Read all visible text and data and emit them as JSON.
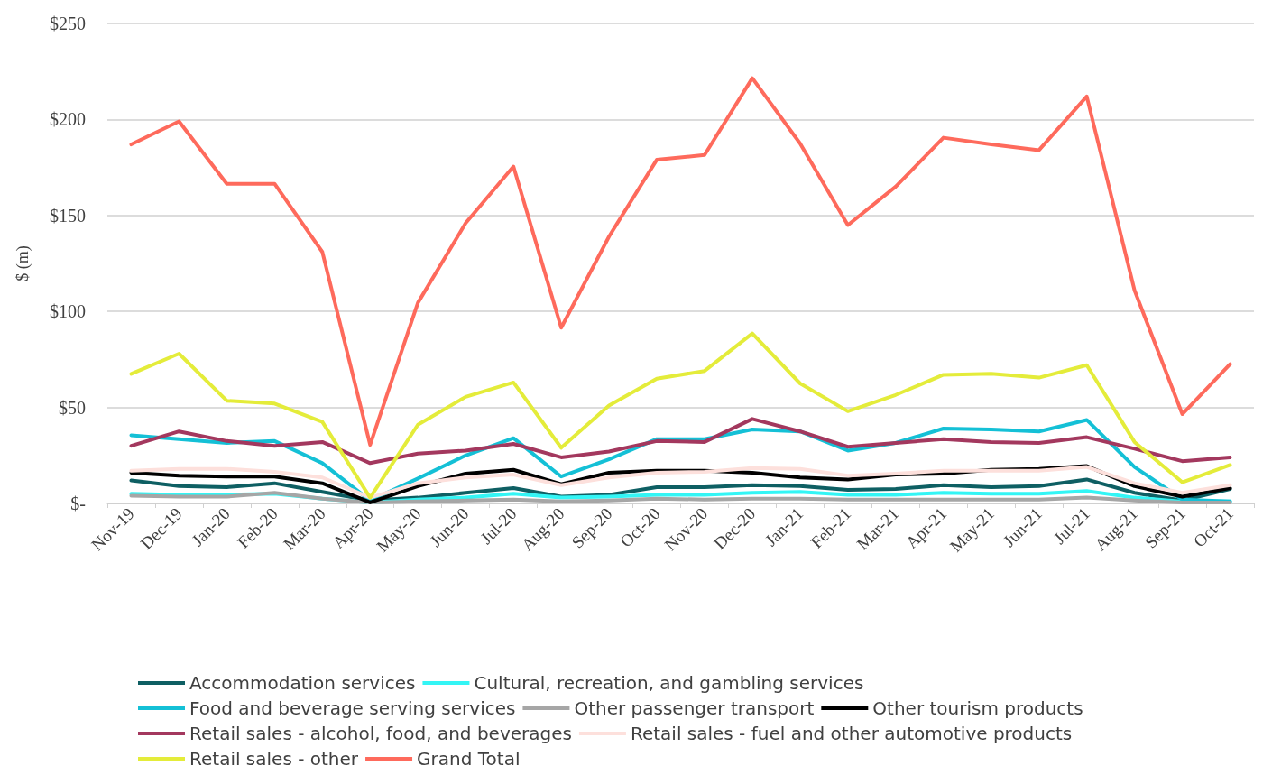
{
  "chart_data": {
    "type": "line",
    "ylabel": "$ (m)",
    "categories": [
      "Nov-19",
      "Dec-19",
      "Jan-20",
      "Feb-20",
      "Mar-20",
      "Apr-20",
      "May-20",
      "Jun-20",
      "Jul-20",
      "Aug-20",
      "Sep-20",
      "Oct-20",
      "Nov-20",
      "Dec-20",
      "Jan-21",
      "Feb-21",
      "Mar-21",
      "Apr-21",
      "May-21",
      "Jun-21",
      "Jul-21",
      "Aug-21",
      "Sep-21",
      "Oct-21"
    ],
    "ylim": [
      0,
      250
    ],
    "yticks": [
      {
        "value": 0,
        "label": "$-"
      },
      {
        "value": 50,
        "label": "$50"
      },
      {
        "value": 100,
        "label": "$100"
      },
      {
        "value": 150,
        "label": "$150"
      },
      {
        "value": 200,
        "label": "$200"
      },
      {
        "value": 250,
        "label": "$250"
      }
    ],
    "grid": "y",
    "legend": "bottom",
    "marker": "none",
    "line_style": "solid",
    "series": [
      {
        "name": "Accommodation services",
        "color": "#0e5f63",
        "values": [
          12,
          9,
          8.5,
          10.5,
          6,
          1.5,
          3,
          5.5,
          8,
          3.5,
          4.5,
          8.5,
          8.5,
          9.5,
          9,
          7,
          7.5,
          9.5,
          8.5,
          9,
          12.5,
          5.5,
          1.5,
          7.5
        ]
      },
      {
        "name": "Cultural, recreation, and gambling services",
        "color": "#33f5f5",
        "values": [
          5,
          4.5,
          4.5,
          5,
          2.5,
          0.5,
          2,
          3,
          5,
          3,
          3.5,
          4.5,
          4.5,
          5.5,
          6,
          4.5,
          4.5,
          5.5,
          5,
          5,
          6.5,
          3,
          1,
          1
        ]
      },
      {
        "name": "Food and beverage serving services",
        "color": "#14c0d6",
        "values": [
          35.5,
          33.5,
          31.5,
          32.5,
          21,
          1.5,
          13,
          25,
          34,
          14,
          23,
          33.5,
          33.5,
          38.5,
          37.5,
          27.5,
          31.5,
          39,
          38.5,
          37.5,
          43.5,
          19,
          2,
          1
        ]
      },
      {
        "name": "Other passenger transport",
        "color": "#a6a6a6",
        "values": [
          4,
          3.5,
          3.5,
          5.5,
          2.5,
          0.5,
          1,
          1.5,
          2,
          1,
          1.5,
          2.5,
          2,
          2.5,
          2.5,
          2,
          2,
          2,
          2,
          2,
          3,
          1.5,
          0.5,
          0.5
        ]
      },
      {
        "name": "Other tourism products",
        "color": "#000000",
        "values": [
          16,
          14.5,
          14,
          14,
          10.5,
          0.5,
          9,
          15.5,
          17.5,
          10,
          16,
          17,
          17,
          16,
          13.5,
          12.5,
          15,
          15.5,
          17.5,
          18,
          19.5,
          9,
          3.5,
          8
        ]
      },
      {
        "name": "Retail sales - alcohol, food, and beverages",
        "color": "#a3385e",
        "values": [
          30,
          37.5,
          32.5,
          30,
          32,
          21,
          26,
          27.5,
          31,
          24,
          27,
          32.5,
          32,
          44,
          37.5,
          29.5,
          31.5,
          33.5,
          32,
          31.5,
          34.5,
          28.5,
          22,
          24
        ]
      },
      {
        "name": "Retail sales - fuel and other automotive products",
        "color": "#fde0dc",
        "values": [
          17,
          18,
          18,
          16.5,
          13.5,
          3,
          10.5,
          13.5,
          15,
          9.5,
          13.5,
          16,
          16.5,
          18.5,
          18,
          14.5,
          15.5,
          17,
          17,
          17,
          19,
          10.5,
          5.5,
          9.5
        ]
      },
      {
        "name": "Retail sales - other",
        "color": "#e4ec3a",
        "values": [
          67.5,
          78,
          53.5,
          52,
          42.5,
          3,
          41,
          55.5,
          63,
          29,
          51,
          65,
          69,
          88.5,
          62.5,
          48,
          56.5,
          67,
          67.5,
          65.5,
          72,
          32,
          11,
          20
        ]
      },
      {
        "name": "Grand Total",
        "color": "#fe6a5c",
        "values": [
          187,
          199,
          166.5,
          166.5,
          131,
          30.5,
          104.5,
          146,
          175.5,
          91.5,
          139,
          179,
          181.5,
          221.5,
          187.5,
          145,
          165,
          190.5,
          187,
          184,
          212,
          111,
          46.5,
          72.5
        ]
      }
    ]
  }
}
